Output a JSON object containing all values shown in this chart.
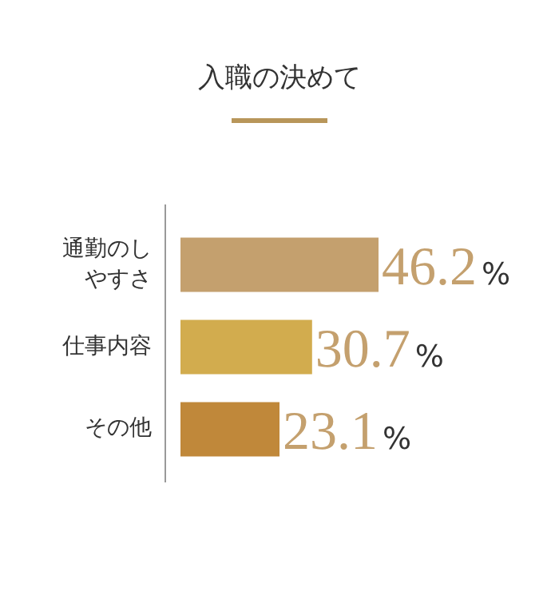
{
  "chart_data": {
    "type": "bar",
    "orientation": "horizontal",
    "title": "入職の決めて",
    "categories": [
      "通勤のしやすさ",
      "仕事内容",
      "その他"
    ],
    "values": [
      46.2,
      30.7,
      23.1
    ],
    "colors": [
      "#c4a06e",
      "#d2ac4e",
      "#c0883a"
    ],
    "value_labels": [
      "46.2%",
      "30.7%",
      "23.1%"
    ]
  }
}
